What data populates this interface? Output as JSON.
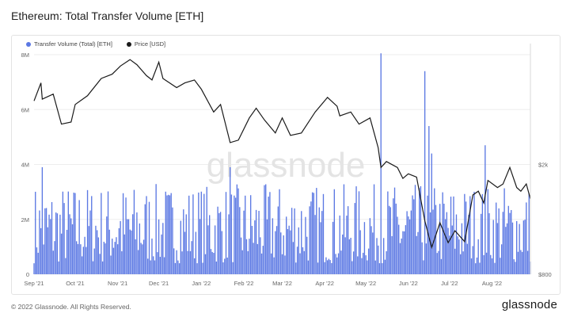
{
  "title": "Ethereum: Total Transfer Volume [ETH]",
  "watermark": "glassnode",
  "footer": {
    "copyright": "© 2022 Glassnode. All Rights Reserved.",
    "logo": "glassnode"
  },
  "colors": {
    "volume": "#5b78e3",
    "price": "#1a1a1a",
    "grid": "#eeeeee",
    "axis_text": "#666666"
  },
  "chart_data": {
    "type": "bar",
    "title": "Ethereum: Total Transfer Volume [ETH]",
    "x_ticks": [
      "Sep '21",
      "Oct '21",
      "Nov '21",
      "Dec '21",
      "Jan '22",
      "Feb '22",
      "Mar '22",
      "Apr '22",
      "May '22",
      "Jun '22",
      "Jul '22",
      "Aug '22"
    ],
    "x_range": [
      "2021-09-01",
      "2022-08-29"
    ],
    "y_left": {
      "ticks": [
        "0",
        "2M",
        "4M",
        "6M",
        "8M"
      ],
      "tick_values": [
        0,
        2000000,
        4000000,
        6000000,
        8000000
      ],
      "ylim": [
        0,
        8000000
      ]
    },
    "y_right": {
      "ticks": [
        "$800",
        "$2k"
      ],
      "tick_values": [
        800,
        2000
      ],
      "scale": "log",
      "ylim": [
        800,
        5000
      ]
    },
    "legend": {
      "placement": "top-left"
    },
    "grid": true,
    "series": [
      {
        "name": "Transfer Volume (Total) [ETH]",
        "kind": "bar",
        "axis": "left",
        "resolution": "daily",
        "spikes": [
          {
            "x": "2021-09-07",
            "y": 3900000
          },
          {
            "x": "2022-01-22",
            "y": 3900000
          },
          {
            "x": "2022-05-12",
            "y": 8050000
          },
          {
            "x": "2022-06-13",
            "y": 7400000
          },
          {
            "x": "2022-06-16",
            "y": 5400000
          },
          {
            "x": "2022-06-18",
            "y": 4400000
          },
          {
            "x": "2022-07-27",
            "y": 4700000
          }
        ],
        "typical_range": [
          400000,
          3300000
        ]
      },
      {
        "name": "Price [USD]",
        "kind": "line",
        "axis": "right",
        "points": [
          [
            "2021-09-01",
            3400
          ],
          [
            "2021-09-06",
            3950
          ],
          [
            "2021-09-07",
            3450
          ],
          [
            "2021-09-15",
            3600
          ],
          [
            "2021-09-21",
            2800
          ],
          [
            "2021-09-28",
            2850
          ],
          [
            "2021-10-01",
            3300
          ],
          [
            "2021-10-10",
            3550
          ],
          [
            "2021-10-20",
            4100
          ],
          [
            "2021-10-28",
            4250
          ],
          [
            "2021-11-03",
            4550
          ],
          [
            "2021-11-10",
            4800
          ],
          [
            "2021-11-15",
            4600
          ],
          [
            "2021-11-22",
            4200
          ],
          [
            "2021-11-26",
            4050
          ],
          [
            "2021-12-01",
            4700
          ],
          [
            "2021-12-04",
            4100
          ],
          [
            "2021-12-14",
            3800
          ],
          [
            "2021-12-20",
            3950
          ],
          [
            "2021-12-27",
            4050
          ],
          [
            "2022-01-01",
            3750
          ],
          [
            "2022-01-10",
            3100
          ],
          [
            "2022-01-15",
            3300
          ],
          [
            "2022-01-22",
            2400
          ],
          [
            "2022-01-28",
            2450
          ],
          [
            "2022-02-05",
            2950
          ],
          [
            "2022-02-10",
            3200
          ],
          [
            "2022-02-16",
            2900
          ],
          [
            "2022-02-24",
            2600
          ],
          [
            "2022-03-01",
            2950
          ],
          [
            "2022-03-07",
            2550
          ],
          [
            "2022-03-15",
            2600
          ],
          [
            "2022-03-25",
            3100
          ],
          [
            "2022-04-03",
            3500
          ],
          [
            "2022-04-10",
            3250
          ],
          [
            "2022-04-12",
            3000
          ],
          [
            "2022-04-20",
            3100
          ],
          [
            "2022-04-26",
            2800
          ],
          [
            "2022-05-04",
            2950
          ],
          [
            "2022-05-10",
            2300
          ],
          [
            "2022-05-12",
            1950
          ],
          [
            "2022-05-16",
            2050
          ],
          [
            "2022-05-24",
            1950
          ],
          [
            "2022-05-28",
            1780
          ],
          [
            "2022-06-01",
            1850
          ],
          [
            "2022-06-07",
            1800
          ],
          [
            "2022-06-13",
            1250
          ],
          [
            "2022-06-18",
            1000
          ],
          [
            "2022-06-24",
            1230
          ],
          [
            "2022-06-30",
            1040
          ],
          [
            "2022-07-05",
            1150
          ],
          [
            "2022-07-12",
            1050
          ],
          [
            "2022-07-18",
            1550
          ],
          [
            "2022-07-22",
            1600
          ],
          [
            "2022-07-26",
            1450
          ],
          [
            "2022-07-29",
            1750
          ],
          [
            "2022-08-05",
            1650
          ],
          [
            "2022-08-09",
            1700
          ],
          [
            "2022-08-14",
            1950
          ],
          [
            "2022-08-19",
            1650
          ],
          [
            "2022-08-22",
            1600
          ],
          [
            "2022-08-26",
            1700
          ],
          [
            "2022-08-29",
            1500
          ]
        ]
      }
    ]
  }
}
